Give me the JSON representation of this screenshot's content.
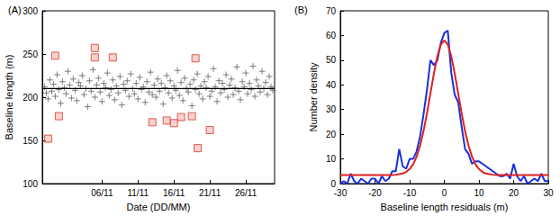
{
  "chart_data": [
    {
      "type": "scatter",
      "title": "(A)",
      "x_label": "Date (DD/MM)",
      "y_label": "Baseline length (m)",
      "xlim": [
        -2.3,
        30
      ],
      "ylim": [
        100,
        300
      ],
      "xticks": [
        {
          "value": 6,
          "label": "06/11"
        },
        {
          "value": 11,
          "label": "11/11"
        },
        {
          "value": 16,
          "label": "16/11"
        },
        {
          "value": 21,
          "label": "21/11"
        },
        {
          "value": 26,
          "label": "26/11"
        }
      ],
      "yticks": [
        100,
        150,
        200,
        250,
        300
      ],
      "grid": false,
      "series": [
        {
          "type": "scatter",
          "marker": "plus",
          "color": "#606060",
          "x": [
            -2,
            -1.75,
            -1.5,
            -1.25,
            -1,
            -0.75,
            -0.5,
            -0.25,
            0,
            0.25,
            0.5,
            0.75,
            1,
            1.25,
            1.5,
            1.75,
            2,
            2.25,
            2.5,
            2.75,
            3,
            3.25,
            3.5,
            3.75,
            4,
            4.25,
            4.5,
            4.75,
            5,
            5.25,
            5.5,
            5.75,
            6,
            6.25,
            6.5,
            6.75,
            7,
            7.25,
            7.5,
            7.75,
            8,
            8.25,
            8.5,
            8.75,
            9,
            9.25,
            9.5,
            9.75,
            10,
            10.25,
            10.5,
            10.75,
            11,
            11.25,
            11.5,
            11.75,
            12,
            12.25,
            12.5,
            12.75,
            13,
            13.25,
            13.5,
            13.75,
            14,
            14.25,
            14.5,
            14.75,
            15,
            15.25,
            15.5,
            15.75,
            16,
            16.25,
            16.5,
            16.75,
            17,
            17.25,
            17.5,
            17.75,
            18,
            18.25,
            18.5,
            18.75,
            19,
            19.25,
            19.5,
            19.75,
            20,
            20.25,
            20.5,
            20.75,
            21,
            21.25,
            21.5,
            21.75,
            22,
            22.25,
            22.5,
            22.75,
            23,
            23.25,
            23.5,
            23.75,
            24,
            24.25,
            24.5,
            24.75,
            25,
            25.25,
            25.5,
            25.75,
            26,
            26.25,
            26.5,
            26.75,
            27,
            27.25,
            27.5,
            27.75,
            28,
            28.25,
            28.5,
            28.75,
            29,
            29.25,
            29.5,
            29.75
          ],
          "values": [
            212,
            205,
            198,
            220,
            207,
            215,
            201,
            226,
            209,
            193,
            218,
            211,
            204,
            230,
            214,
            199,
            221,
            208,
            196,
            217,
            213,
            225,
            203,
            210,
            189,
            219,
            207,
            232,
            200,
            214,
            222,
            206,
            195,
            216,
            211,
            228,
            202,
            209,
            220,
            197,
            213,
            205,
            224,
            191,
            215,
            208,
            219,
            201,
            227,
            210,
            204,
            216,
            198,
            223,
            209,
            212,
            194,
            218,
            206,
            229,
            203,
            214,
            200,
            221,
            207,
            216,
            192,
            211,
            225,
            205,
            219,
            199,
            213,
            208,
            231,
            202,
            217,
            196,
            222,
            210,
            206,
            215,
            190,
            220,
            209,
            227,
            204,
            213,
            198,
            218,
            211,
            224,
            201,
            207,
            233,
            212,
            195,
            219,
            205,
            216,
            209,
            226,
            200,
            214,
            221,
            203,
            211,
            235,
            207,
            197,
            218,
            212,
            228,
            204,
            216,
            209,
            236,
            201,
            220,
            213,
            206,
            230,
            210,
            217,
            203,
            224,
            212,
            208
          ]
        },
        {
          "type": "scatter",
          "marker": "square",
          "color": "#d9382a",
          "x": [
            -1.5,
            -0.5,
            0,
            5,
            5,
            7.5,
            13,
            15,
            16,
            17,
            18.5,
            19,
            19.3,
            21
          ],
          "values": [
            152,
            248,
            178,
            257,
            246,
            246,
            171,
            173,
            170,
            177,
            178,
            245,
            141,
            162
          ]
        },
        {
          "type": "line",
          "line_style": "solid",
          "color": "#000000",
          "x": [
            -2.3,
            30
          ],
          "values": [
            210,
            210
          ]
        }
      ]
    },
    {
      "type": "line",
      "title": "(B)",
      "x_label": "Baseline length residuals (m)",
      "y_label": "Number density",
      "xlim": [
        -30,
        30
      ],
      "ylim": [
        0,
        70
      ],
      "xticks": [
        -30,
        -20,
        -10,
        0,
        10,
        20,
        30
      ],
      "yticks": [
        0,
        10,
        20,
        30,
        40,
        50,
        60,
        70
      ],
      "grid": false,
      "series": [
        {
          "type": "line",
          "line_style": "solid",
          "color": "#1a2fe0",
          "x": [
            -30,
            -29,
            -28,
            -27,
            -26,
            -25,
            -24,
            -23,
            -22,
            -21,
            -20,
            -19,
            -18,
            -17,
            -16,
            -15,
            -14,
            -13,
            -12,
            -11,
            -10,
            -9,
            -8,
            -7,
            -6,
            -5,
            -4,
            -3,
            -2,
            -1,
            0,
            1,
            2,
            3,
            4,
            5,
            6,
            7,
            8,
            9,
            10,
            11,
            12,
            13,
            14,
            15,
            16,
            17,
            18,
            19,
            20,
            21,
            22,
            23,
            24,
            25,
            26,
            27,
            28,
            29,
            30
          ],
          "values": [
            0,
            1,
            0,
            4,
            1,
            0,
            2,
            1,
            0,
            2,
            2,
            0,
            3,
            1,
            2,
            5,
            5,
            14,
            7,
            6,
            10,
            10,
            13,
            19,
            28,
            38,
            50,
            48,
            50,
            57,
            61,
            62,
            45,
            36,
            33,
            23,
            14,
            12,
            8,
            9,
            9,
            8,
            7,
            6,
            5,
            4,
            3,
            3,
            4,
            2,
            8,
            3,
            1,
            3,
            0,
            1,
            2,
            1,
            4,
            1,
            1
          ]
        },
        {
          "type": "line",
          "line_style": "solid",
          "color": "#e02020",
          "x": [
            -30,
            -29,
            -28,
            -27,
            -26,
            -25,
            -24,
            -23,
            -22,
            -21,
            -20,
            -19,
            -18,
            -17,
            -16,
            -15,
            -14,
            -13,
            -12,
            -11,
            -10,
            -9,
            -8,
            -7,
            -6,
            -5,
            -4,
            -3,
            -2,
            -1,
            0,
            1,
            2,
            3,
            4,
            5,
            6,
            7,
            8,
            9,
            10,
            11,
            12,
            13,
            14,
            15,
            16,
            17,
            18,
            19,
            20,
            21,
            22,
            23,
            24,
            25,
            26,
            27,
            28,
            29,
            30
          ],
          "values": [
            3.5,
            3.5,
            3.5,
            3.5,
            3.5,
            3.5,
            3.5,
            3.5,
            3.5,
            3.5,
            3.5,
            3.5,
            3.5,
            3.5,
            3.5,
            3.5,
            3.6,
            3.8,
            4.1,
            4.7,
            5.9,
            7.8,
            10.9,
            15.3,
            21.2,
            28.5,
            36.6,
            44.6,
            51.6,
            56.3,
            58,
            56.3,
            51.6,
            44.6,
            36.6,
            28.5,
            21.2,
            15.3,
            10.9,
            7.8,
            5.9,
            4.7,
            4.1,
            3.8,
            3.6,
            3.5,
            3.5,
            3.5,
            3.5,
            3.5,
            3.5,
            3.5,
            3.5,
            3.5,
            3.5,
            3.5,
            3.5,
            3.5,
            3.5,
            3.5,
            3.5
          ]
        }
      ]
    }
  ]
}
